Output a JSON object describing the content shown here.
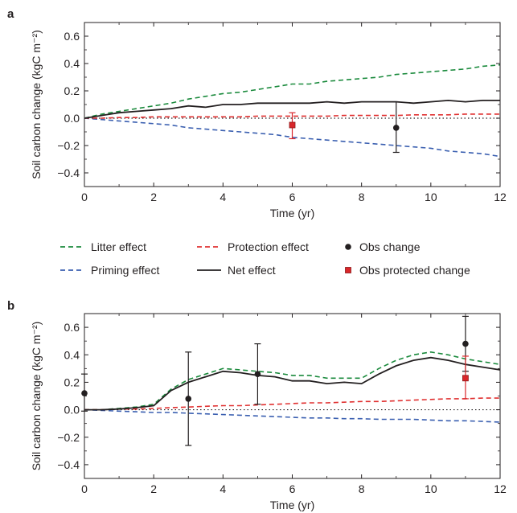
{
  "legend": [
    {
      "label": "Litter effect",
      "color": "#1a8a3c",
      "style": "dashed"
    },
    {
      "label": "Priming effect",
      "color": "#3a5fb0",
      "style": "dashed"
    },
    {
      "label": "Protection effect",
      "color": "#e03030",
      "style": "dashed"
    },
    {
      "label": "Net effect",
      "color": "#231f20",
      "style": "solid"
    },
    {
      "label": "Obs change",
      "color": "#231f20",
      "style": "circle"
    },
    {
      "label": "Obs protected change",
      "color": "#d9262a",
      "style": "square"
    }
  ],
  "colors": {
    "litter": "#1a8a3c",
    "priming": "#3a5fb0",
    "protection": "#e03030",
    "net": "#231f20",
    "obs": "#231f20",
    "obs_protected": "#d9262a",
    "obs_protected_err": "#d9262a"
  },
  "chart_data": [
    {
      "type": "line",
      "panel": "a",
      "xlabel": "Time (yr)",
      "ylabel": "Soil carbon change (kgC m⁻²)",
      "xlim": [
        0,
        12
      ],
      "ylim": [
        -0.5,
        0.7
      ],
      "xticks": [
        0,
        2,
        4,
        6,
        8,
        10,
        12
      ],
      "yticks": [
        -0.4,
        -0.2,
        0.0,
        0.2,
        0.4,
        0.6
      ],
      "ytick_labels": [
        "−0.4",
        "−0.2",
        "0.0",
        "0.2",
        "0.4",
        "0.6"
      ],
      "zero_line": "dotted",
      "series": [
        {
          "name": "Litter effect",
          "key": "litter",
          "x": [
            0,
            0.5,
            1,
            1.5,
            2,
            2.5,
            3,
            3.5,
            4,
            4.5,
            5,
            5.5,
            6,
            6.5,
            7,
            7.5,
            8,
            8.5,
            9,
            9.5,
            10,
            10.5,
            11,
            11.5,
            12
          ],
          "y": [
            0,
            0.03,
            0.05,
            0.07,
            0.09,
            0.11,
            0.14,
            0.16,
            0.18,
            0.19,
            0.21,
            0.23,
            0.25,
            0.25,
            0.27,
            0.28,
            0.29,
            0.3,
            0.32,
            0.33,
            0.34,
            0.35,
            0.36,
            0.38,
            0.39
          ]
        },
        {
          "name": "Priming effect",
          "key": "priming",
          "x": [
            0,
            0.5,
            1,
            1.5,
            2,
            2.5,
            3,
            3.5,
            4,
            4.5,
            5,
            5.5,
            6,
            6.5,
            7,
            7.5,
            8,
            8.5,
            9,
            9.5,
            10,
            10.5,
            11,
            11.5,
            12
          ],
          "y": [
            0,
            -0.01,
            -0.02,
            -0.03,
            -0.04,
            -0.05,
            -0.07,
            -0.08,
            -0.09,
            -0.1,
            -0.11,
            -0.12,
            -0.14,
            -0.15,
            -0.16,
            -0.17,
            -0.18,
            -0.19,
            -0.2,
            -0.21,
            -0.22,
            -0.24,
            -0.25,
            -0.26,
            -0.28
          ]
        },
        {
          "name": "Protection effect",
          "key": "protection",
          "x": [
            0,
            0.5,
            1,
            1.5,
            2,
            2.5,
            3,
            3.5,
            4,
            4.5,
            5,
            5.5,
            6,
            6.5,
            7,
            7.5,
            8,
            8.5,
            9,
            9.5,
            10,
            10.5,
            11,
            11.5,
            12
          ],
          "y": [
            0,
            0.0,
            0.005,
            0.005,
            0.01,
            0.01,
            0.01,
            0.01,
            0.01,
            0.01,
            0.015,
            0.015,
            0.015,
            0.015,
            0.015,
            0.02,
            0.02,
            0.02,
            0.02,
            0.025,
            0.025,
            0.025,
            0.03,
            0.03,
            0.03
          ]
        },
        {
          "name": "Net effect",
          "key": "net",
          "x": [
            0,
            0.5,
            1,
            1.5,
            2,
            2.5,
            3,
            3.5,
            4,
            4.5,
            5,
            5.5,
            6,
            6.5,
            7,
            7.5,
            8,
            8.5,
            9,
            9.5,
            10,
            10.5,
            11,
            11.5,
            12
          ],
          "y": [
            0,
            0.02,
            0.04,
            0.05,
            0.06,
            0.07,
            0.09,
            0.08,
            0.1,
            0.1,
            0.11,
            0.11,
            0.11,
            0.11,
            0.12,
            0.11,
            0.12,
            0.12,
            0.12,
            0.11,
            0.12,
            0.13,
            0.12,
            0.13,
            0.13
          ]
        }
      ],
      "points": [
        {
          "name": "Obs change",
          "key": "obs",
          "x": 9,
          "y": -0.07,
          "err_low": -0.25,
          "err_high": 0.12
        },
        {
          "name": "Obs protected change",
          "key": "obs_protected",
          "x": 6,
          "y": -0.05,
          "err_low": -0.15,
          "err_high": 0.04
        }
      ]
    },
    {
      "type": "line",
      "panel": "b",
      "xlabel": "Time (yr)",
      "ylabel": "Soil carbon change (kgC m⁻²)",
      "xlim": [
        0,
        12
      ],
      "ylim": [
        -0.5,
        0.7
      ],
      "xticks": [
        0,
        2,
        4,
        6,
        8,
        10,
        12
      ],
      "yticks": [
        -0.4,
        -0.2,
        0.0,
        0.2,
        0.4,
        0.6
      ],
      "ytick_labels": [
        "−0.4",
        "−0.2",
        "0.0",
        "0.2",
        "0.4",
        "0.6"
      ],
      "zero_line": "dotted",
      "series": [
        {
          "name": "Litter effect",
          "key": "litter",
          "x": [
            0,
            0.5,
            1,
            1.5,
            2,
            2.5,
            3,
            3.5,
            4,
            4.5,
            5,
            5.5,
            6,
            6.5,
            7,
            7.5,
            8,
            8.5,
            9,
            9.5,
            10,
            10.5,
            11,
            11.5,
            12
          ],
          "y": [
            0,
            0.0,
            0.01,
            0.02,
            0.04,
            0.15,
            0.22,
            0.26,
            0.3,
            0.29,
            0.28,
            0.27,
            0.25,
            0.25,
            0.23,
            0.23,
            0.23,
            0.3,
            0.36,
            0.4,
            0.42,
            0.4,
            0.37,
            0.35,
            0.33
          ]
        },
        {
          "name": "Priming effect",
          "key": "priming",
          "x": [
            0,
            0.5,
            1,
            1.5,
            2,
            2.5,
            3,
            3.5,
            4,
            4.5,
            5,
            5.5,
            6,
            6.5,
            7,
            7.5,
            8,
            8.5,
            9,
            9.5,
            10,
            10.5,
            11,
            11.5,
            12
          ],
          "y": [
            0,
            -0.005,
            -0.01,
            -0.015,
            -0.02,
            -0.02,
            -0.025,
            -0.03,
            -0.035,
            -0.04,
            -0.045,
            -0.05,
            -0.055,
            -0.06,
            -0.06,
            -0.065,
            -0.065,
            -0.07,
            -0.07,
            -0.07,
            -0.075,
            -0.08,
            -0.08,
            -0.085,
            -0.09
          ]
        },
        {
          "name": "Protection effect",
          "key": "protection",
          "x": [
            0,
            0.5,
            1,
            1.5,
            2,
            2.5,
            3,
            3.5,
            4,
            4.5,
            5,
            5.5,
            6,
            6.5,
            7,
            7.5,
            8,
            8.5,
            9,
            9.5,
            10,
            10.5,
            11,
            11.5,
            12
          ],
          "y": [
            0,
            0.0,
            0.005,
            0.005,
            0.01,
            0.015,
            0.02,
            0.025,
            0.03,
            0.03,
            0.035,
            0.04,
            0.045,
            0.05,
            0.05,
            0.055,
            0.06,
            0.06,
            0.065,
            0.07,
            0.075,
            0.08,
            0.08,
            0.085,
            0.085
          ]
        },
        {
          "name": "Net effect",
          "key": "net",
          "x": [
            0,
            0.5,
            1,
            1.5,
            2,
            2.5,
            3,
            3.5,
            4,
            4.5,
            5,
            5.5,
            6,
            6.5,
            7,
            7.5,
            8,
            8.5,
            9,
            9.5,
            10,
            10.5,
            11,
            11.5,
            12
          ],
          "y": [
            0,
            0.0,
            0.005,
            0.015,
            0.03,
            0.14,
            0.2,
            0.24,
            0.28,
            0.27,
            0.25,
            0.24,
            0.21,
            0.21,
            0.19,
            0.2,
            0.19,
            0.26,
            0.32,
            0.36,
            0.38,
            0.36,
            0.33,
            0.31,
            0.29
          ]
        }
      ],
      "points": [
        {
          "name": "Obs change",
          "key": "obs",
          "x": 0,
          "y": 0.12,
          "err_low": -0.01,
          "err_high": 0.26
        },
        {
          "name": "Obs change",
          "key": "obs",
          "x": 3,
          "y": 0.08,
          "err_low": -0.26,
          "err_high": 0.42
        },
        {
          "name": "Obs change",
          "key": "obs",
          "x": 5,
          "y": 0.26,
          "err_low": 0.04,
          "err_high": 0.48
        },
        {
          "name": "Obs change",
          "key": "obs",
          "x": 11,
          "y": 0.48,
          "err_low": 0.28,
          "err_high": 0.68
        },
        {
          "name": "Obs protected change",
          "key": "obs_protected",
          "x": 11,
          "y": 0.23,
          "err_low": 0.08,
          "err_high": 0.39
        }
      ]
    }
  ]
}
